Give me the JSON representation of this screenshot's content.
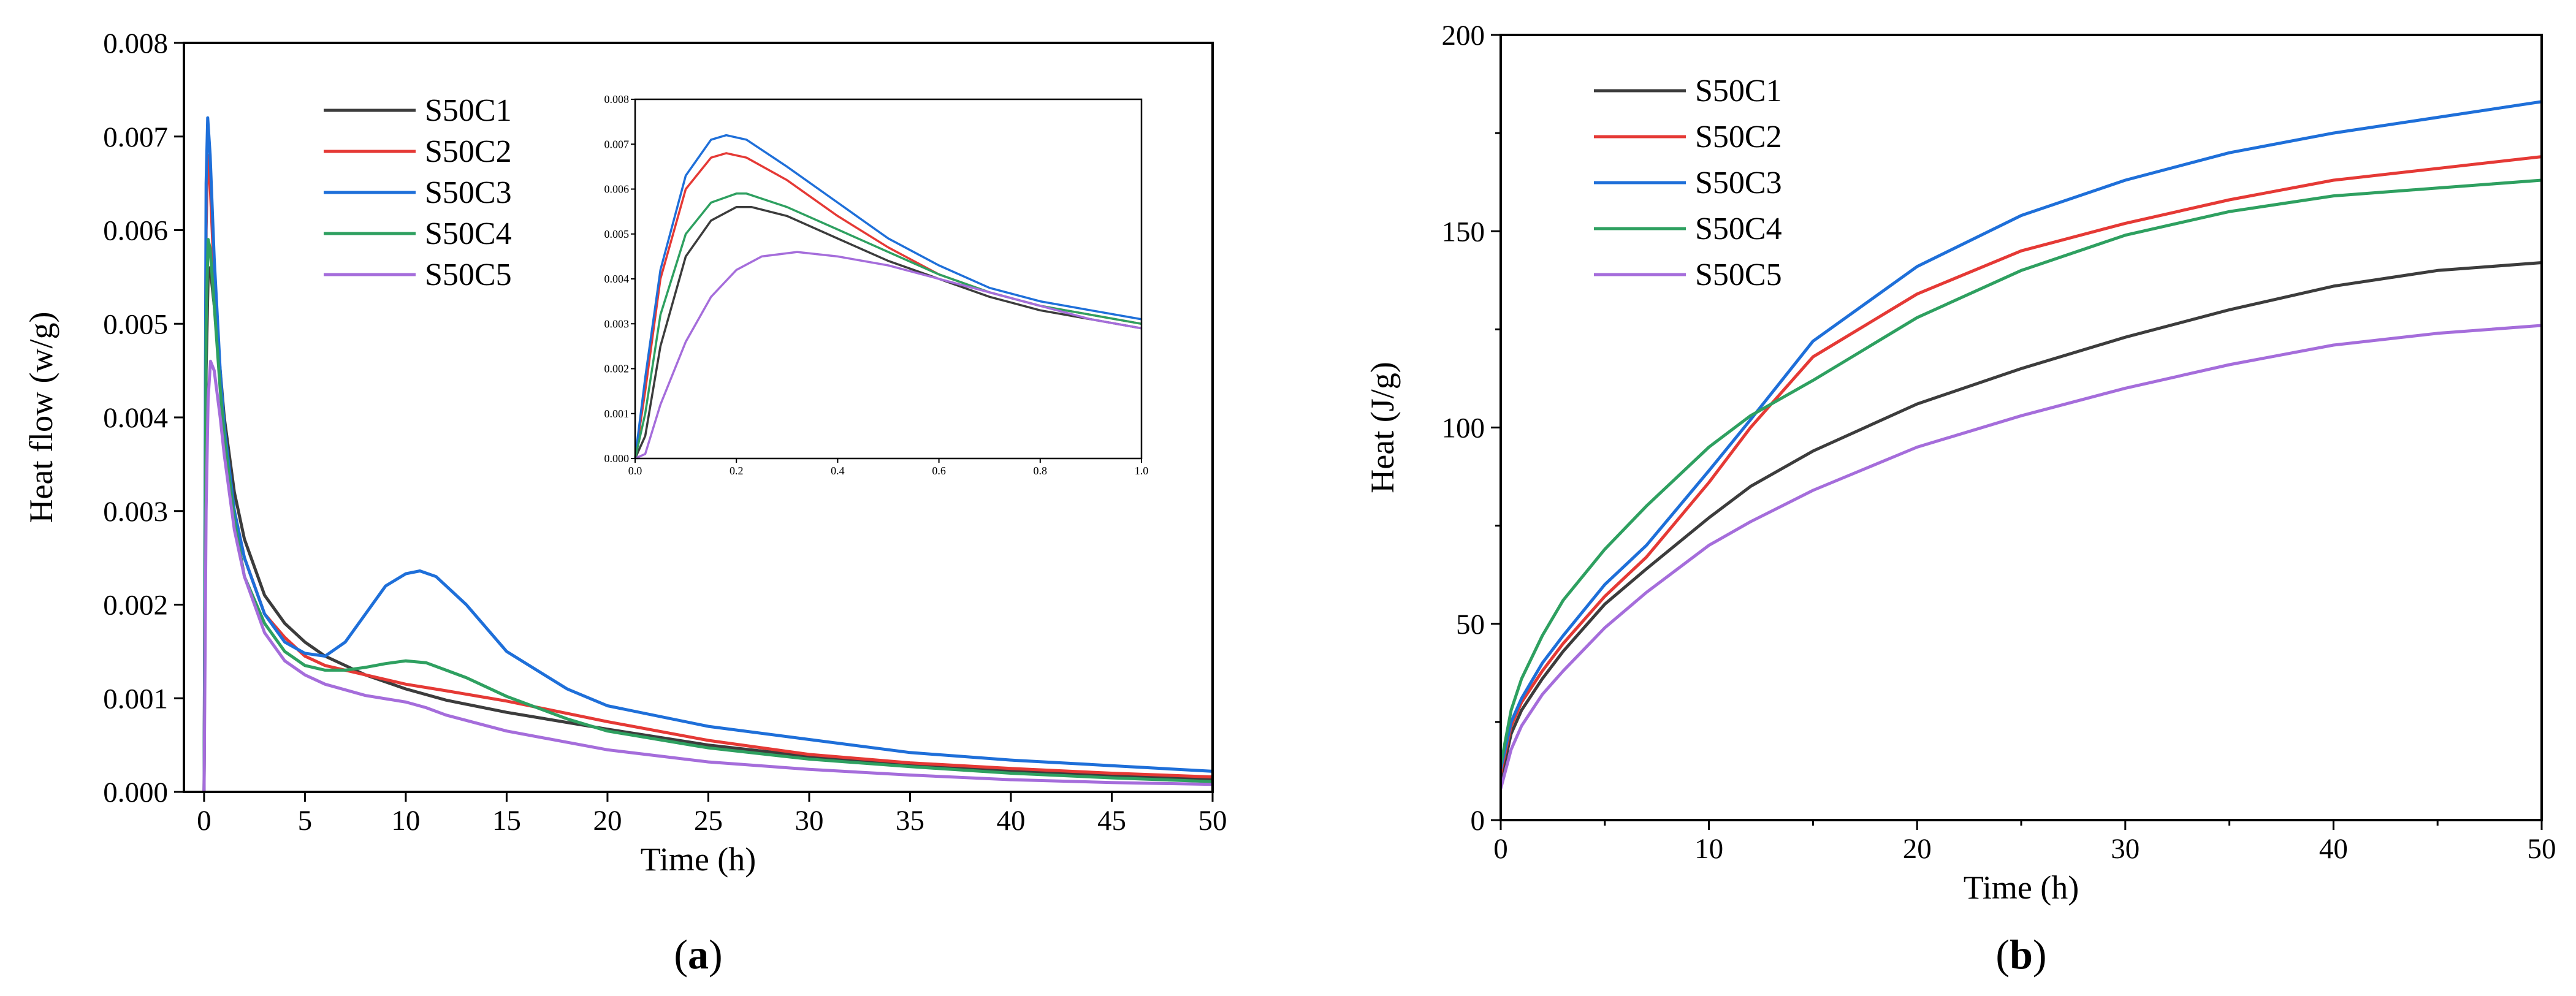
{
  "chart_data": [
    {
      "type": "line",
      "panel_label": "(a)",
      "panel_letter": "a",
      "xlabel": "Time (h)",
      "ylabel": "Heat flow (w/g)",
      "xlim": [
        -1,
        50
      ],
      "ylim": [
        0,
        0.008
      ],
      "xticks": [
        "0",
        "5",
        "10",
        "15",
        "20",
        "25",
        "30",
        "35",
        "40",
        "45",
        "50"
      ],
      "yticks": [
        "0.000",
        "0.001",
        "0.002",
        "0.003",
        "0.004",
        "0.005",
        "0.006",
        "0.007",
        "0.008"
      ],
      "legend": [
        "S50C1",
        "S50C2",
        "S50C3",
        "S50C4",
        "S50C5"
      ],
      "legend_position": "top-left",
      "series": [
        {
          "name": "S50C1",
          "color": "#3c3c3c",
          "x": [
            0.0,
            0.1,
            0.2,
            0.3,
            0.5,
            0.8,
            1,
            1.5,
            2,
            3,
            4,
            5,
            6,
            8,
            10,
            12,
            15,
            20,
            25,
            30,
            35,
            40,
            45,
            50
          ],
          "y": [
            0,
            0.0045,
            0.0055,
            0.0056,
            0.0052,
            0.0045,
            0.004,
            0.0032,
            0.0027,
            0.0021,
            0.0018,
            0.0016,
            0.00145,
            0.00125,
            0.0011,
            0.00098,
            0.00085,
            0.00067,
            0.0005,
            0.00038,
            0.0003,
            0.00023,
            0.00018,
            0.00014
          ]
        },
        {
          "name": "S50C2",
          "color": "#e53935",
          "x": [
            0.0,
            0.1,
            0.18,
            0.3,
            0.5,
            0.8,
            1,
            1.5,
            2,
            3,
            4,
            5,
            6,
            8,
            10,
            12,
            15,
            20,
            25,
            30,
            35,
            40,
            45,
            50
          ],
          "y": [
            0,
            0.006,
            0.0068,
            0.0065,
            0.0055,
            0.0044,
            0.0038,
            0.003,
            0.0025,
            0.0019,
            0.00165,
            0.00145,
            0.00135,
            0.00125,
            0.00115,
            0.00108,
            0.00097,
            0.00075,
            0.00055,
            0.0004,
            0.00031,
            0.00025,
            0.0002,
            0.00016
          ]
        },
        {
          "name": "S50C3",
          "color": "#1e6fd9",
          "x": [
            0.0,
            0.1,
            0.18,
            0.3,
            0.5,
            0.8,
            1,
            1.5,
            2,
            3,
            4,
            5,
            6,
            7,
            8,
            9,
            10,
            10.7,
            11.5,
            13,
            15,
            18,
            20,
            25,
            30,
            35,
            40,
            45,
            50
          ],
          "y": [
            0,
            0.0065,
            0.0072,
            0.0068,
            0.0057,
            0.0045,
            0.0039,
            0.003,
            0.0025,
            0.0019,
            0.0016,
            0.00148,
            0.00145,
            0.0016,
            0.0019,
            0.0022,
            0.00233,
            0.00236,
            0.0023,
            0.002,
            0.0015,
            0.0011,
            0.00092,
            0.0007,
            0.00056,
            0.00042,
            0.00034,
            0.00028,
            0.00022
          ]
        },
        {
          "name": "S50C4",
          "color": "#2ea060",
          "x": [
            0.0,
            0.1,
            0.2,
            0.3,
            0.5,
            0.8,
            1,
            1.5,
            2,
            3,
            4,
            5,
            6,
            7,
            8,
            9,
            10,
            11,
            12,
            13,
            15,
            18,
            20,
            25,
            30,
            35,
            40,
            45,
            50
          ],
          "y": [
            0,
            0.005,
            0.0059,
            0.0058,
            0.0052,
            0.0043,
            0.0038,
            0.0029,
            0.0023,
            0.0018,
            0.0015,
            0.00135,
            0.0013,
            0.0013,
            0.00133,
            0.00137,
            0.0014,
            0.00138,
            0.0013,
            0.00122,
            0.00102,
            0.00078,
            0.00065,
            0.00047,
            0.00035,
            0.00027,
            0.0002,
            0.00015,
            0.00011
          ]
        },
        {
          "name": "S50C5",
          "color": "#a56ddb",
          "x": [
            0.0,
            0.1,
            0.2,
            0.32,
            0.5,
            0.8,
            1,
            1.5,
            2,
            3,
            4,
            5,
            6,
            8,
            10,
            11,
            12,
            15,
            20,
            25,
            30,
            35,
            40,
            45,
            50
          ],
          "y": [
            0,
            0.003,
            0.0042,
            0.0046,
            0.0045,
            0.004,
            0.0036,
            0.0028,
            0.0023,
            0.0017,
            0.0014,
            0.00125,
            0.00115,
            0.00103,
            0.00096,
            0.0009,
            0.00082,
            0.00065,
            0.00045,
            0.00032,
            0.00024,
            0.00018,
            0.00013,
            0.0001,
            8e-05
          ]
        }
      ],
      "inset": {
        "xlim": [
          0,
          1.0
        ],
        "ylim": [
          0,
          0.008
        ],
        "xticks": [
          "0.0",
          "0.2",
          "0.4",
          "0.6",
          "0.8",
          "1.0"
        ],
        "yticks": [
          "0.000",
          "0.001",
          "0.002",
          "0.003",
          "0.004",
          "0.005",
          "0.006",
          "0.007",
          "0.008"
        ],
        "series": [
          {
            "name": "S50C1",
            "color": "#3c3c3c",
            "x": [
              0.0,
              0.02,
              0.05,
              0.1,
              0.15,
              0.2,
              0.23,
              0.3,
              0.4,
              0.5,
              0.6,
              0.7,
              0.8,
              0.9,
              1.0
            ],
            "y": [
              0,
              0.0005,
              0.0025,
              0.0045,
              0.0053,
              0.0056,
              0.0056,
              0.0054,
              0.0049,
              0.0044,
              0.004,
              0.0036,
              0.0033,
              0.0031,
              0.0029
            ]
          },
          {
            "name": "S50C2",
            "color": "#e53935",
            "x": [
              0.0,
              0.02,
              0.05,
              0.1,
              0.15,
              0.18,
              0.22,
              0.3,
              0.4,
              0.5,
              0.6,
              0.7,
              0.8,
              0.9,
              1.0
            ],
            "y": [
              0,
              0.0015,
              0.004,
              0.006,
              0.0067,
              0.0068,
              0.0067,
              0.0062,
              0.0054,
              0.0047,
              0.0041,
              0.0037,
              0.0034,
              0.0032,
              0.003
            ]
          },
          {
            "name": "S50C3",
            "color": "#1e6fd9",
            "x": [
              0.0,
              0.02,
              0.05,
              0.1,
              0.15,
              0.18,
              0.22,
              0.3,
              0.4,
              0.5,
              0.6,
              0.7,
              0.8,
              0.9,
              1.0
            ],
            "y": [
              0,
              0.0018,
              0.0042,
              0.0063,
              0.0071,
              0.0072,
              0.0071,
              0.0065,
              0.0057,
              0.0049,
              0.0043,
              0.0038,
              0.0035,
              0.0033,
              0.0031
            ]
          },
          {
            "name": "S50C4",
            "color": "#2ea060",
            "x": [
              0.0,
              0.02,
              0.05,
              0.1,
              0.15,
              0.2,
              0.22,
              0.3,
              0.4,
              0.5,
              0.6,
              0.7,
              0.8,
              0.9,
              1.0
            ],
            "y": [
              0,
              0.001,
              0.0032,
              0.005,
              0.0057,
              0.0059,
              0.0059,
              0.0056,
              0.0051,
              0.0046,
              0.0041,
              0.0037,
              0.0034,
              0.0032,
              0.003
            ]
          },
          {
            "name": "S50C5",
            "color": "#a56ddb",
            "x": [
              0.0,
              0.02,
              0.05,
              0.1,
              0.15,
              0.2,
              0.25,
              0.32,
              0.4,
              0.5,
              0.6,
              0.7,
              0.8,
              0.9,
              1.0
            ],
            "y": [
              0,
              0.0001,
              0.0012,
              0.0026,
              0.0036,
              0.0042,
              0.0045,
              0.0046,
              0.0045,
              0.0043,
              0.004,
              0.0037,
              0.0034,
              0.0031,
              0.0029
            ]
          }
        ]
      }
    },
    {
      "type": "line",
      "panel_label": "(b)",
      "panel_letter": "b",
      "xlabel": "Time (h)",
      "ylabel": "Heat (J/g)",
      "xlim": [
        0,
        50
      ],
      "ylim": [
        0,
        200
      ],
      "xticks": [
        "0",
        "10",
        "20",
        "30",
        "40",
        "50"
      ],
      "yticks": [
        "0",
        "50",
        "100",
        "150",
        "200"
      ],
      "legend": [
        "S50C1",
        "S50C2",
        "S50C3",
        "S50C4",
        "S50C5"
      ],
      "legend_position": "top-left",
      "series": [
        {
          "name": "S50C1",
          "color": "#3c3c3c",
          "x": [
            0,
            0.5,
            1,
            2,
            3,
            5,
            7,
            10,
            12,
            15,
            20,
            25,
            30,
            35,
            40,
            45,
            50
          ],
          "y": [
            10,
            22,
            28,
            36,
            43,
            55,
            64,
            77,
            85,
            94,
            106,
            115,
            123,
            130,
            136,
            140,
            142
          ]
        },
        {
          "name": "S50C2",
          "color": "#e53935",
          "x": [
            0,
            0.5,
            1,
            2,
            3,
            5,
            7,
            10,
            12,
            15,
            20,
            25,
            30,
            35,
            40,
            45,
            50
          ],
          "y": [
            12,
            24,
            30,
            38,
            45,
            57,
            67,
            86,
            100,
            118,
            134,
            145,
            152,
            158,
            163,
            166,
            169
          ]
        },
        {
          "name": "S50C3",
          "color": "#1e6fd9",
          "x": [
            0,
            0.5,
            1,
            2,
            3,
            5,
            7,
            10,
            12,
            15,
            20,
            25,
            30,
            35,
            40,
            45,
            50
          ],
          "y": [
            13,
            25,
            31,
            40,
            47,
            60,
            70,
            89,
            102,
            122,
            141,
            154,
            163,
            170,
            175,
            179,
            183
          ]
        },
        {
          "name": "S50C4",
          "color": "#2ea060",
          "x": [
            0,
            0.5,
            1,
            2,
            3,
            5,
            7,
            10,
            12,
            15,
            20,
            25,
            30,
            35,
            40,
            45,
            50
          ],
          "y": [
            14,
            28,
            36,
            47,
            56,
            69,
            80,
            95,
            103,
            112,
            128,
            140,
            149,
            155,
            159,
            161,
            163
          ]
        },
        {
          "name": "S50C5",
          "color": "#a56ddb",
          "x": [
            0,
            0.5,
            1,
            2,
            3,
            5,
            7,
            10,
            12,
            15,
            20,
            25,
            30,
            35,
            40,
            45,
            50
          ],
          "y": [
            8,
            18,
            24,
            32,
            38,
            49,
            58,
            70,
            76,
            84,
            95,
            103,
            110,
            116,
            121,
            124,
            126
          ]
        }
      ]
    }
  ]
}
